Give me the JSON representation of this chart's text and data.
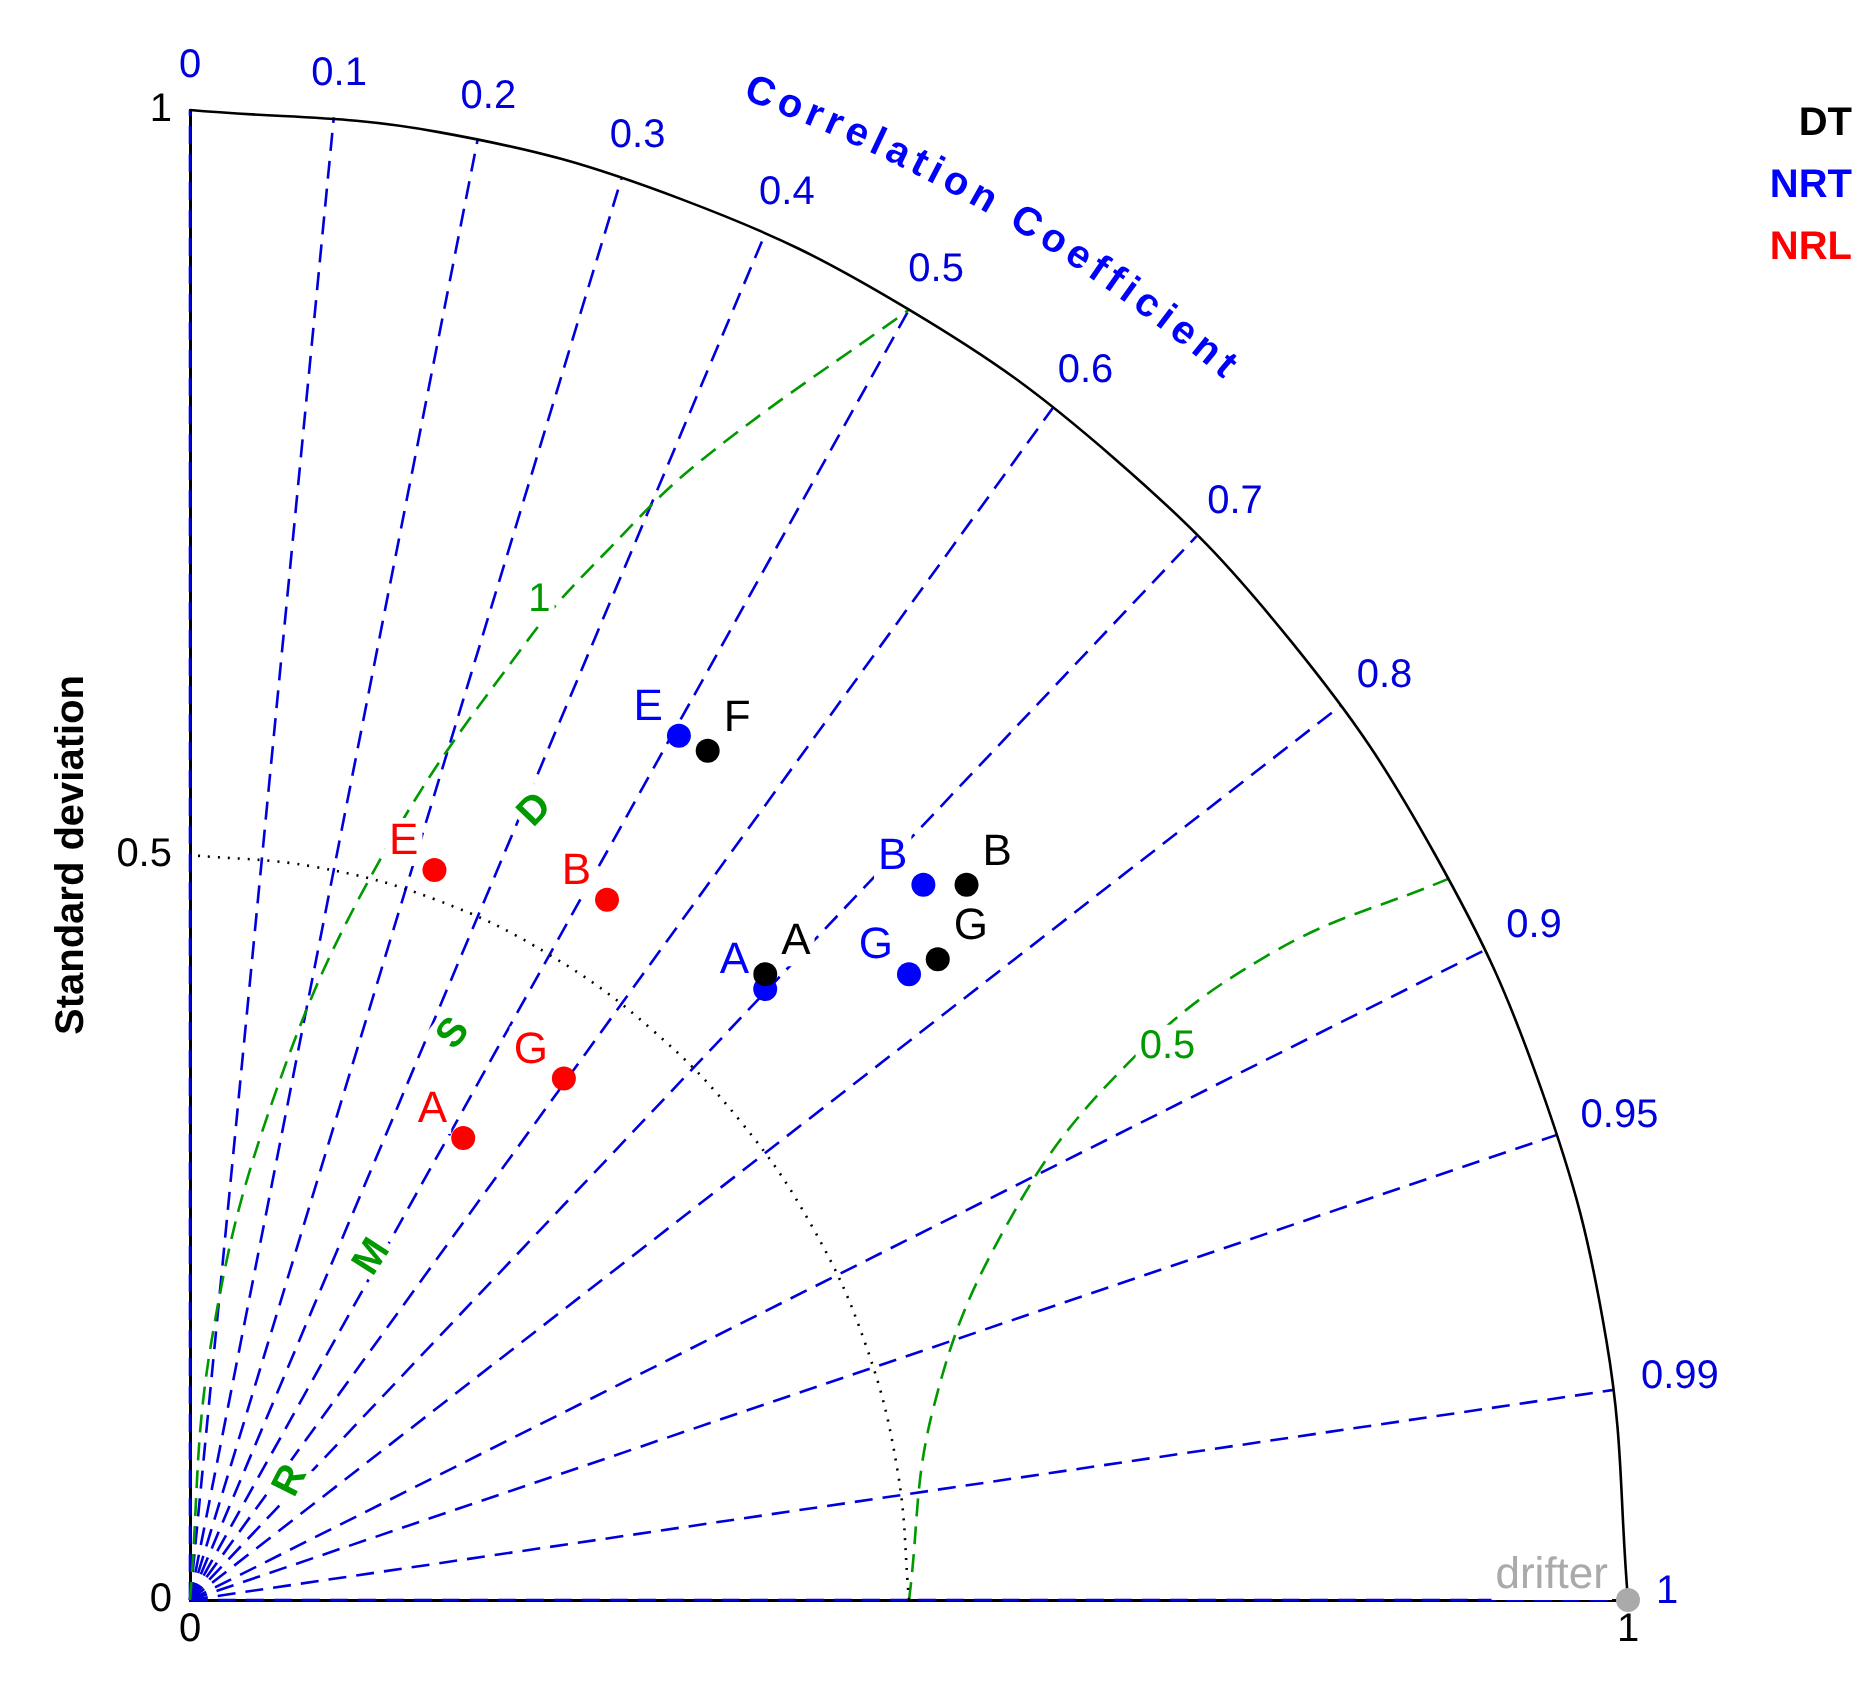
{
  "chart_data": {
    "type": "scatter",
    "ylabel": "Standard deviation",
    "xlim": [
      0,
      1
    ],
    "ylim": [
      0,
      1
    ],
    "xticks": [
      0,
      1
    ],
    "yticks": [
      0,
      0.5,
      1
    ],
    "legend": "top right",
    "marker": "circle",
    "series": [
      {
        "name": "DT",
        "color": "#000000",
        "x": [
          0.36,
          0.54,
          0.52,
          0.4
        ],
        "values": [
          0.57,
          0.48,
          0.43,
          0.42
        ],
        "value_labels": [
          "F",
          "B",
          "G",
          "A"
        ]
      },
      {
        "name": "NRT",
        "color": "#0000ff",
        "x": [
          0.34,
          0.51,
          0.5,
          0.4
        ],
        "values": [
          0.58,
          0.48,
          0.42,
          0.41
        ],
        "value_labels": [
          "E",
          "B",
          "G",
          "A"
        ]
      },
      {
        "name": "NRL",
        "color": "#ff0000",
        "x": [
          0.17,
          0.29,
          0.26,
          0.19
        ],
        "values": [
          0.49,
          0.47,
          0.35,
          0.31
        ],
        "value_labels": [
          "E",
          "B",
          "G",
          "A"
        ]
      },
      {
        "color": "#aaaaaa",
        "x": [
          1
        ],
        "values": [
          0
        ],
        "value_labels": [
          "drifter"
        ]
      },
      {
        "type": "line",
        "color": "#000000",
        "line_style": "solid",
        "marker": "none",
        "x": [
          1,
          0.985,
          0.94,
          0.866,
          0.766,
          0.643,
          0.5,
          0.342,
          0.174,
          0
        ],
        "values": [
          0,
          0.174,
          0.342,
          0.5,
          0.643,
          0.766,
          0.866,
          0.94,
          0.985,
          1
        ]
      },
      {
        "type": "line",
        "color": "#000000",
        "line_style": "dotted",
        "marker": "none",
        "x": [
          0.5,
          0.492,
          0.47,
          0.433,
          0.383,
          0.321,
          0.25,
          0.171,
          0.087,
          0
        ],
        "values": [
          0,
          0.087,
          0.171,
          0.25,
          0.321,
          0.383,
          0.433,
          0.47,
          0.492,
          0.5
        ]
      },
      {
        "type": "line",
        "name": "1",
        "color": "#009900",
        "line_style": "dashed",
        "marker": "none",
        "x": [
          0,
          0.015,
          0.06,
          0.134,
          0.234,
          0.293,
          0.357,
          0.5
        ],
        "values": [
          0,
          0.174,
          0.342,
          0.5,
          0.643,
          0.707,
          0.766,
          0.866
        ]
      },
      {
        "type": "line",
        "name": "0.5",
        "color": "#009900",
        "line_style": "dashed",
        "marker": "none",
        "x": [
          0.5,
          0.517,
          0.567,
          0.646,
          0.75,
          0.875
        ],
        "values": [
          0,
          0.129,
          0.25,
          0.354,
          0.433,
          0.484
        ]
      },
      {
        "type": "line",
        "name": "0",
        "color": "#0000dd",
        "line_style": "dashed",
        "marker": "none",
        "x": [
          0,
          0
        ],
        "values": [
          0,
          1
        ]
      },
      {
        "type": "line",
        "name": "0.1",
        "color": "#0000dd",
        "line_style": "dashed",
        "marker": "none",
        "x": [
          0,
          0.1
        ],
        "values": [
          0,
          0.995
        ]
      },
      {
        "type": "line",
        "name": "0.2",
        "color": "#0000dd",
        "line_style": "dashed",
        "marker": "none",
        "x": [
          0,
          0.2
        ],
        "values": [
          0,
          0.98
        ]
      },
      {
        "type": "line",
        "name": "0.3",
        "color": "#0000dd",
        "line_style": "dashed",
        "marker": "none",
        "x": [
          0,
          0.3
        ],
        "values": [
          0,
          0.954
        ]
      },
      {
        "type": "line",
        "name": "0.4",
        "color": "#0000dd",
        "line_style": "dashed",
        "marker": "none",
        "x": [
          0,
          0.4
        ],
        "values": [
          0,
          0.917
        ]
      },
      {
        "type": "line",
        "name": "0.5",
        "color": "#0000dd",
        "line_style": "dashed",
        "marker": "none",
        "x": [
          0,
          0.5
        ],
        "values": [
          0,
          0.866
        ]
      },
      {
        "type": "line",
        "name": "0.6",
        "color": "#0000dd",
        "line_style": "dashed",
        "marker": "none",
        "x": [
          0,
          0.6
        ],
        "values": [
          0,
          0.8
        ]
      },
      {
        "type": "line",
        "name": "0.7",
        "color": "#0000dd",
        "line_style": "dashed",
        "marker": "none",
        "x": [
          0,
          0.7
        ],
        "values": [
          0,
          0.714
        ]
      },
      {
        "type": "line",
        "name": "0.8",
        "color": "#0000dd",
        "line_style": "dashed",
        "marker": "none",
        "x": [
          0,
          0.8
        ],
        "values": [
          0,
          0.6
        ]
      },
      {
        "type": "line",
        "name": "0.9",
        "color": "#0000dd",
        "line_style": "dashed",
        "marker": "none",
        "x": [
          0,
          0.9
        ],
        "values": [
          0,
          0.436
        ]
      },
      {
        "type": "line",
        "name": "0.95",
        "color": "#0000dd",
        "line_style": "dashed",
        "marker": "none",
        "x": [
          0,
          0.95
        ],
        "values": [
          0,
          0.312
        ]
      },
      {
        "type": "line",
        "name": "0.99",
        "color": "#0000dd",
        "line_style": "dashed",
        "marker": "none",
        "x": [
          0,
          0.99
        ],
        "values": [
          0,
          0.141
        ]
      },
      {
        "type": "line",
        "name": "1",
        "color": "#0000dd",
        "line_style": "dashed",
        "marker": "none",
        "x": [
          0,
          1
        ],
        "values": [
          0,
          0
        ]
      }
    ],
    "annotations": [
      "Correlation Coefficient",
      "R",
      "M",
      "S",
      "D"
    ]
  }
}
